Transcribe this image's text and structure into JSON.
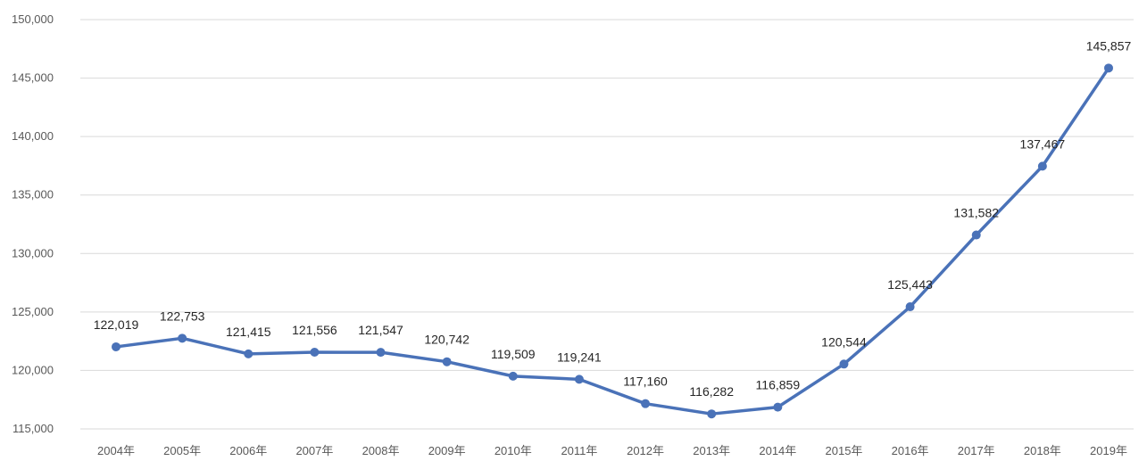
{
  "chart_data": {
    "type": "line",
    "title": "",
    "xlabel": "",
    "ylabel": "",
    "categories": [
      "2004年",
      "2005年",
      "2006年",
      "2007年",
      "2008年",
      "2009年",
      "2010年",
      "2011年",
      "2012年",
      "2013年",
      "2014年",
      "2015年",
      "2016年",
      "2017年",
      "2018年",
      "2019年"
    ],
    "series": [
      {
        "values": [
          122019,
          122753,
          121415,
          121556,
          121547,
          120742,
          119509,
          119241,
          117160,
          116282,
          116859,
          120544,
          125443,
          131582,
          137467,
          145857
        ],
        "data_labels": [
          "122,019",
          "122,753",
          "121,415",
          "121,556",
          "121,547",
          "120,742",
          "119,509",
          "119,241",
          "117,160",
          "116,282",
          "116,859",
          "120,544",
          "125,443",
          "131,582",
          "137,467",
          "145,857"
        ],
        "color": "#4a72b8"
      }
    ],
    "ylim": [
      115000,
      150000
    ],
    "yticks": [
      115000,
      120000,
      125000,
      130000,
      135000,
      140000,
      145000,
      150000
    ],
    "ytick_labels": [
      "115,000",
      "120,000",
      "125,000",
      "130,000",
      "135,000",
      "140,000",
      "145,000",
      "150,000"
    ],
    "grid": true,
    "legend": "none",
    "gridline_color": "#d9d9d9",
    "tick_label_color": "#595959"
  }
}
